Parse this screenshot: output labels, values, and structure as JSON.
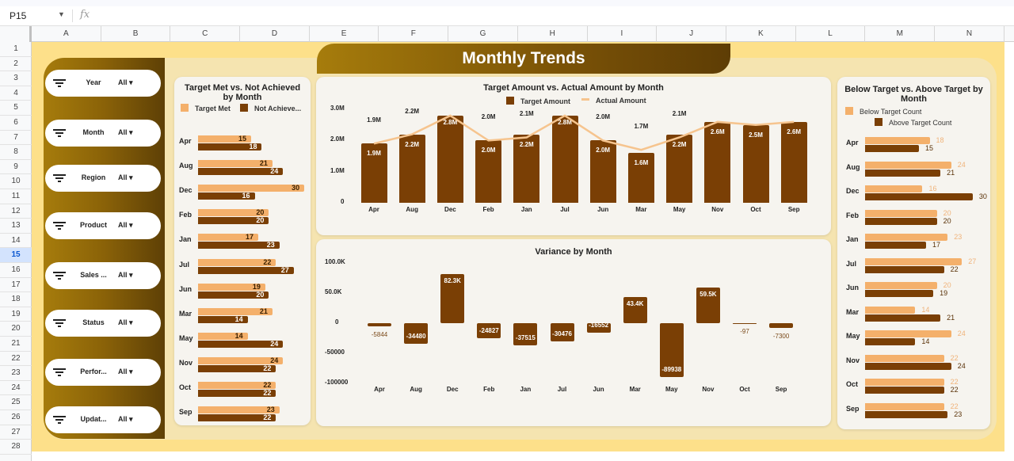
{
  "formula_bar": {
    "name_box": "P15",
    "fx_label": "fx"
  },
  "sheet": {
    "columns": [
      "A",
      "B",
      "C",
      "D",
      "E",
      "F",
      "G",
      "H",
      "I",
      "J",
      "K",
      "L",
      "M",
      "N"
    ],
    "rows": [
      "1",
      "2",
      "3",
      "4",
      "5",
      "6",
      "7",
      "8",
      "9",
      "10",
      "11",
      "12",
      "13",
      "14",
      "15",
      "16",
      "17",
      "18",
      "19",
      "20",
      "21",
      "22",
      "23",
      "24",
      "25",
      "26",
      "27",
      "28"
    ],
    "active_row": "15"
  },
  "dashboard": {
    "title": "Monthly Trends"
  },
  "filters": [
    {
      "label": "Year",
      "value": "All"
    },
    {
      "label": "Month",
      "value": "All"
    },
    {
      "label": "Region",
      "value": "All"
    },
    {
      "label": "Product",
      "value": "All"
    },
    {
      "label": "Sales ...",
      "value": "All"
    },
    {
      "label": "Status",
      "value": "All"
    },
    {
      "label": "Perfor...",
      "value": "All"
    },
    {
      "label": "Updat...",
      "value": "All"
    }
  ],
  "colors": {
    "light": "#f4b06b",
    "dark": "#7a3f05",
    "light_text": "#f0b37a",
    "dark_text": "#5a3208"
  },
  "chart_data": [
    {
      "type": "bar",
      "orientation": "horizontal",
      "title": "Target Met vs. Not Achieved by Month",
      "categories": [
        "Apr",
        "Aug",
        "Dec",
        "Feb",
        "Jan",
        "Jul",
        "Jun",
        "Mar",
        "May",
        "Nov",
        "Oct",
        "Sep"
      ],
      "series": [
        {
          "name": "Target Met",
          "values": [
            15,
            21,
            30,
            20,
            17,
            22,
            19,
            21,
            14,
            24,
            22,
            23
          ]
        },
        {
          "name": "Not Achieve...",
          "values": [
            18,
            24,
            16,
            20,
            23,
            27,
            20,
            14,
            24,
            22,
            22,
            22
          ]
        }
      ]
    },
    {
      "type": "bar",
      "title": "Target Amount vs. Actual Amount by Month",
      "categories": [
        "Apr",
        "Aug",
        "Dec",
        "Feb",
        "Jan",
        "Jul",
        "Jun",
        "Mar",
        "May",
        "Nov",
        "Oct",
        "Sep"
      ],
      "y_ticks": [
        "0",
        "1.0M",
        "2.0M",
        "3.0M"
      ],
      "ylim": [
        0,
        3000000
      ],
      "series": [
        {
          "name": "Target Amount",
          "kind": "bar",
          "values": [
            1900000,
            2200000,
            2800000,
            2000000,
            2200000,
            2800000,
            2000000,
            1600000,
            2200000,
            2600000,
            2500000,
            2600000
          ],
          "labels": [
            "1.9M",
            "2.2M",
            "2.8M",
            "2.0M",
            "2.2M",
            "2.8M",
            "2.0M",
            "1.6M",
            "2.2M",
            "2.6M",
            "2.5M",
            "2.6M"
          ]
        },
        {
          "name": "Actual Amount",
          "kind": "line",
          "values": [
            1900000,
            2200000,
            2800000,
            2000000,
            2100000,
            2800000,
            2000000,
            1700000,
            2100000,
            2600000,
            2500000,
            2600000
          ],
          "labels": [
            "1.9M",
            "2.2M",
            "",
            "2.0M",
            "2.1M",
            "",
            "2.0M",
            "1.7M",
            "2.1M",
            "",
            "",
            ""
          ]
        }
      ]
    },
    {
      "type": "bar",
      "title": "Variance by Month",
      "categories": [
        "Apr",
        "Aug",
        "Dec",
        "Feb",
        "Jan",
        "Jul",
        "Jun",
        "Mar",
        "May",
        "Nov",
        "Oct",
        "Sep"
      ],
      "y_ticks": [
        "-100000",
        "-50000",
        "0",
        "50.0K",
        "100.0K"
      ],
      "ylim": [
        -100000,
        100000
      ],
      "values": [
        -5844,
        -34480,
        82300,
        -24827,
        -37515,
        -30476,
        -16552,
        43400,
        -89938,
        59500,
        -97,
        -7300
      ],
      "labels": [
        "-5844",
        "-34480",
        "82.3K",
        "-24827",
        "-37515",
        "-30476",
        "-16552",
        "43.4K",
        "-89938",
        "59.5K",
        "-97",
        "-7300"
      ]
    },
    {
      "type": "bar",
      "orientation": "horizontal",
      "title": "Below Target  vs.  Above Target by Month",
      "categories": [
        "Apr",
        "Aug",
        "Dec",
        "Feb",
        "Jan",
        "Jul",
        "Jun",
        "Mar",
        "May",
        "Nov",
        "Oct",
        "Sep"
      ],
      "series": [
        {
          "name": "Below Target Count",
          "values": [
            18,
            24,
            16,
            20,
            23,
            27,
            20,
            14,
            24,
            22,
            22,
            22
          ]
        },
        {
          "name": "Above Target Count",
          "values": [
            15,
            21,
            30,
            20,
            17,
            22,
            19,
            21,
            14,
            24,
            22,
            23
          ]
        }
      ]
    }
  ]
}
